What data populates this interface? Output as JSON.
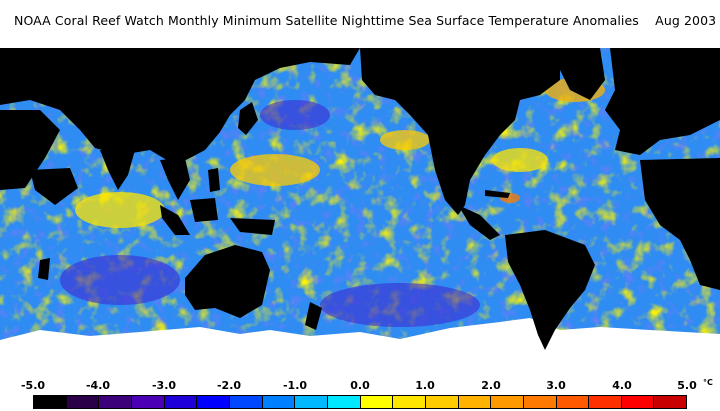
{
  "header": {
    "title": "NOAA Coral Reef Watch Monthly Minimum Satellite Nighttime Sea Surface Temperature Anomalies    Aug 2003"
  },
  "map": {
    "land_color": "#000000",
    "ice_color": "#ffffff",
    "ocean_base_color": "#2e8cf2"
  },
  "legend": {
    "unit": "°C",
    "tick_labels": [
      "-5.0",
      "-4.0",
      "-3.0",
      "-2.0",
      "-1.0",
      "0.0",
      "1.0",
      "2.0",
      "3.0",
      "4.0",
      "5.0"
    ],
    "colors": [
      "#000000",
      "#2a0048",
      "#3c007a",
      "#4b00b5",
      "#1e00d8",
      "#0000ff",
      "#0048ff",
      "#0080ff",
      "#00b8ff",
      "#00e8ff",
      "#ffff00",
      "#ffe600",
      "#ffcc00",
      "#ffb300",
      "#ff9900",
      "#ff7a00",
      "#ff5a00",
      "#ff3000",
      "#ff0000",
      "#c80000"
    ]
  }
}
